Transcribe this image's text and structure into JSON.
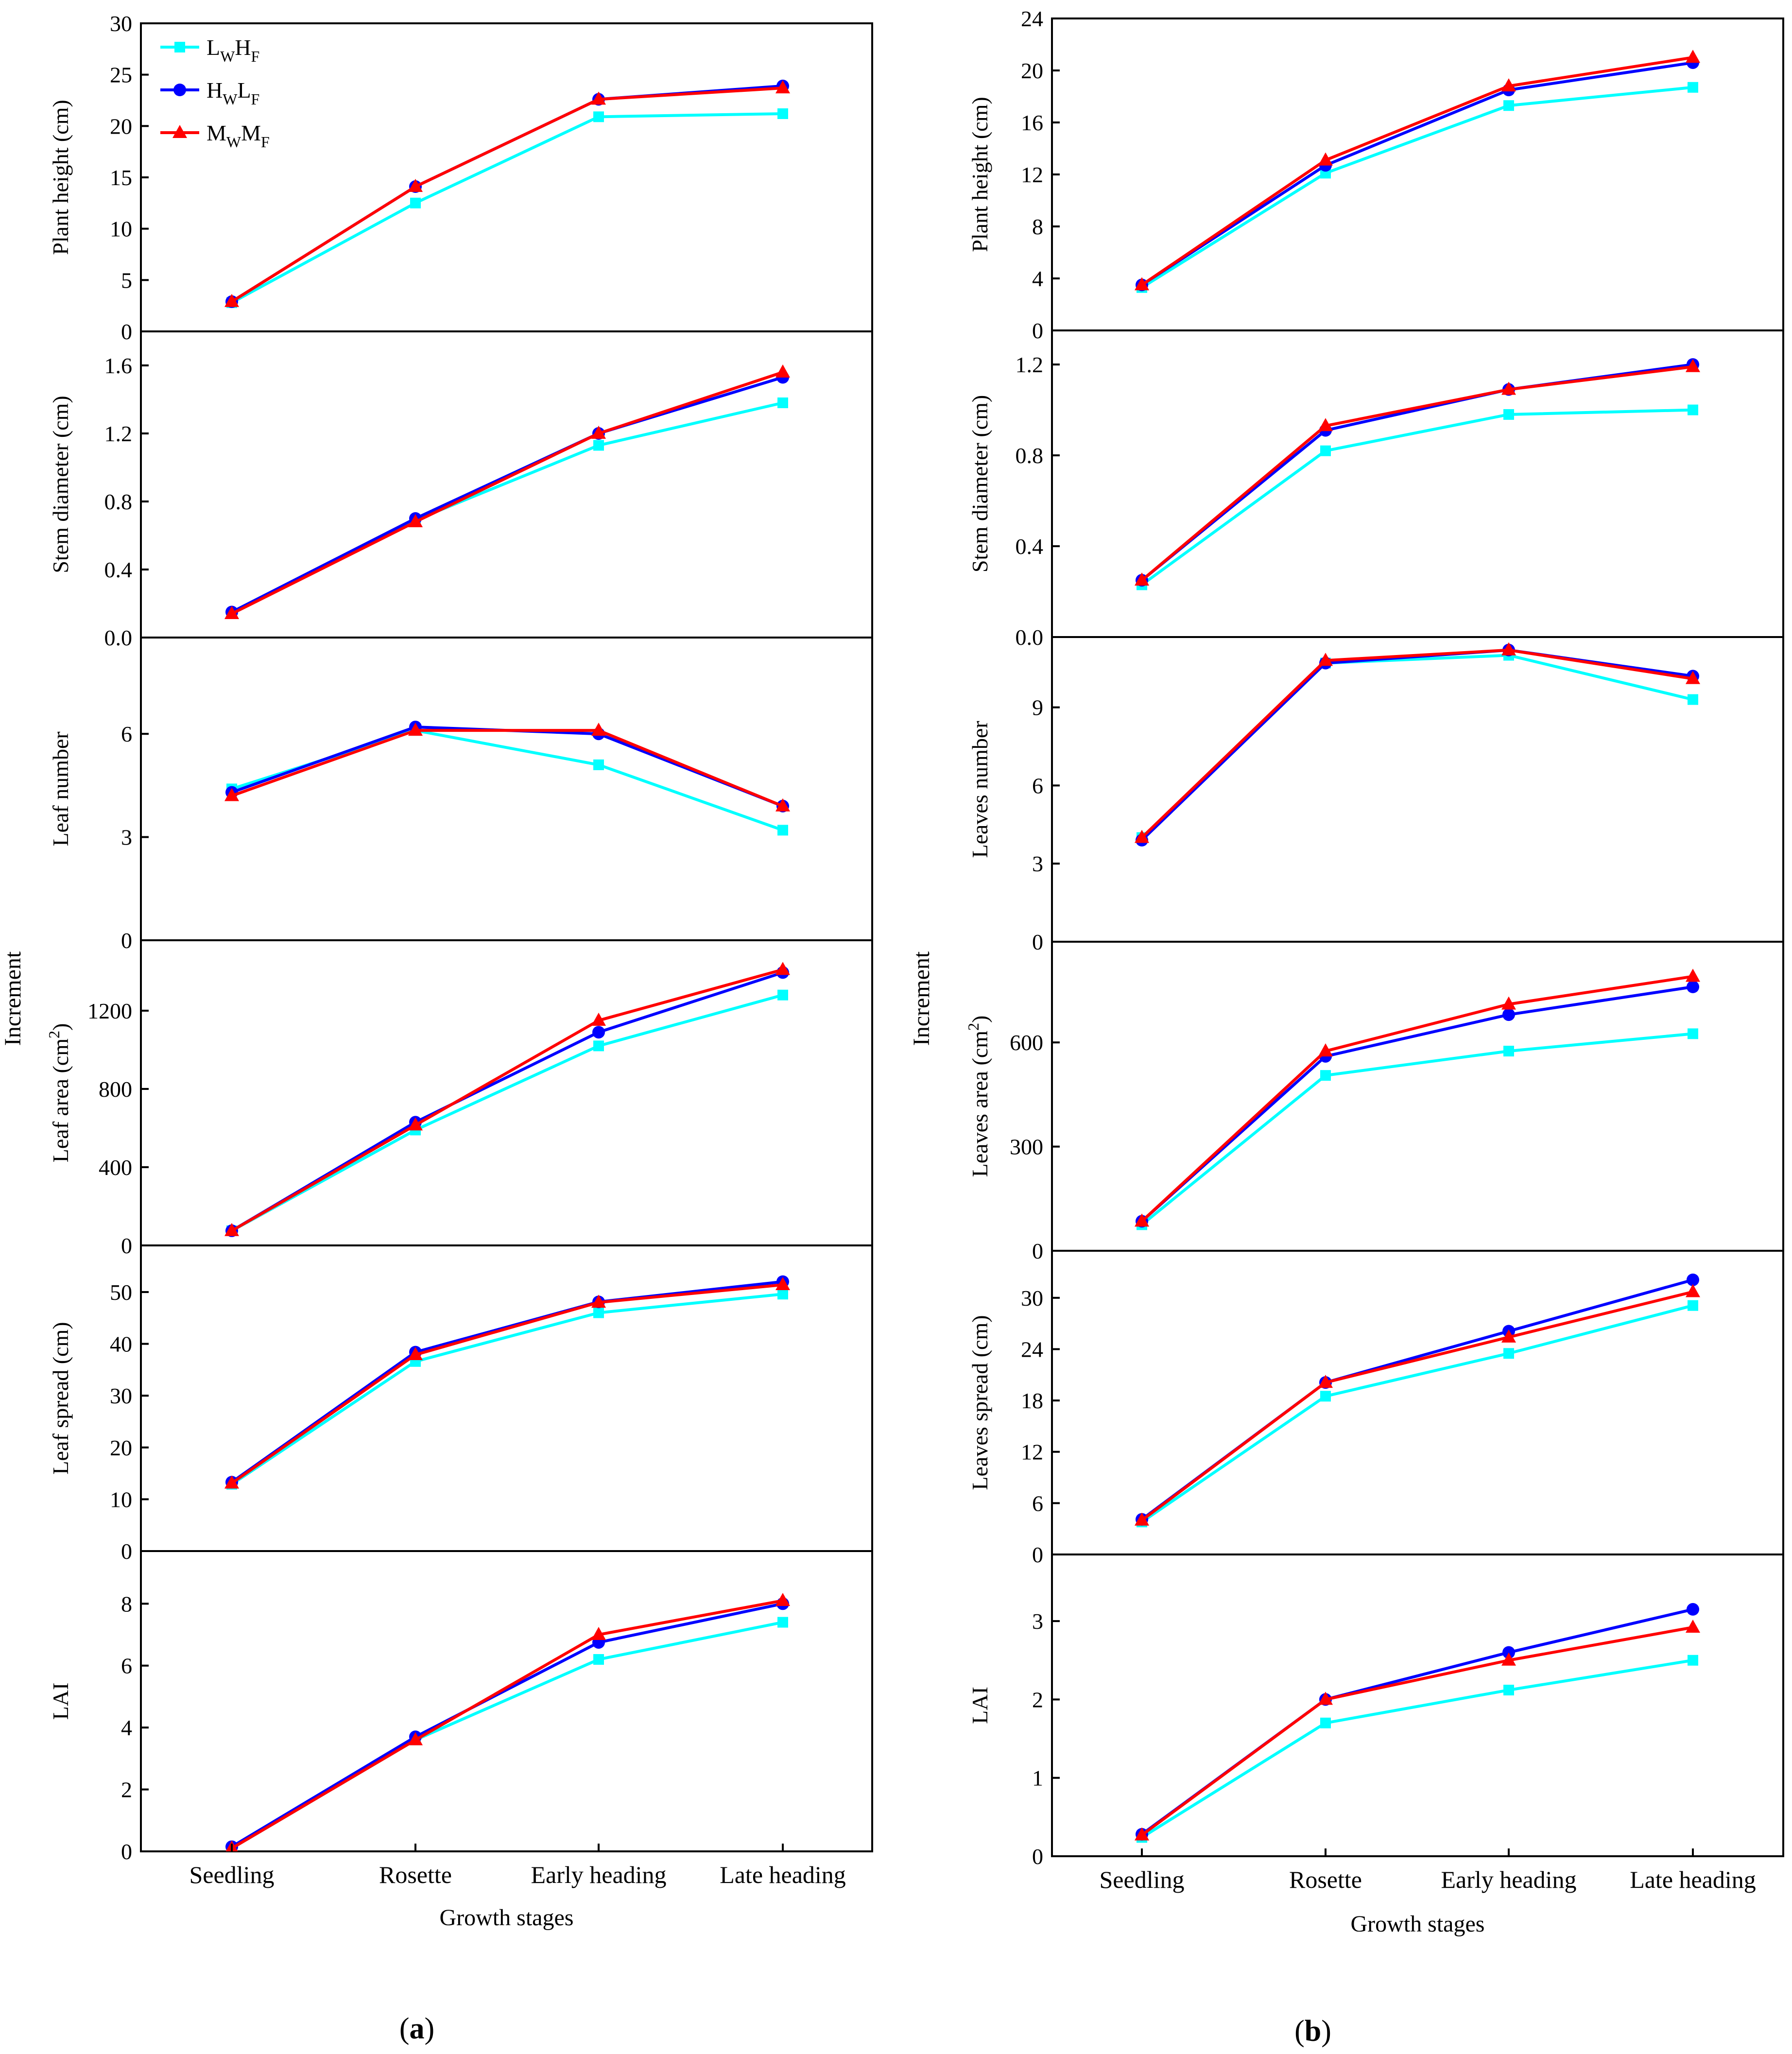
{
  "chart_data": [
    {
      "panel": "a",
      "panel_label": "(a)",
      "type": "line",
      "y_group_label": "Increment",
      "xlabel": "Growth stages",
      "categories": [
        "Seedling",
        "Rosette",
        "Early heading",
        "Late heading"
      ],
      "legend": {
        "placement": "top-left",
        "entries": [
          {
            "main1": "L",
            "sub1": "W",
            "main2": "H",
            "sub2": "F"
          },
          {
            "main1": "H",
            "sub1": "W",
            "main2": "L",
            "sub2": "F"
          },
          {
            "main1": "M",
            "sub1": "W",
            "main2": "M",
            "sub2": "F"
          }
        ]
      },
      "subplots": [
        {
          "ylabel": "Plant height (cm)",
          "ylabel_sup": "",
          "ylabel_end": "",
          "ylim": [
            0,
            30
          ],
          "yticks": [
            0,
            5,
            10,
            15,
            20,
            25,
            30
          ],
          "tick_labels": [
            "0",
            "5",
            "10",
            "15",
            "20",
            "25",
            "30"
          ],
          "series": [
            {
              "name": "LWHF",
              "values": [
                2.8,
                12.5,
                20.9,
                21.2
              ]
            },
            {
              "name": "HWLF",
              "values": [
                2.9,
                14.1,
                22.6,
                23.9
              ]
            },
            {
              "name": "MWMF",
              "values": [
                2.9,
                14.1,
                22.6,
                23.7
              ]
            }
          ]
        },
        {
          "ylabel": "Stem diameter (cm)",
          "ylabel_sup": "",
          "ylabel_end": "",
          "ylim": [
            0,
            1.8
          ],
          "yticks": [
            0,
            0.4,
            0.8,
            1.2,
            1.6
          ],
          "tick_labels": [
            "0.0",
            "0.4",
            "0.8",
            "1.2",
            "1.6"
          ],
          "series": [
            {
              "name": "LWHF",
              "values": [
                0.14,
                0.69,
                1.13,
                1.38
              ]
            },
            {
              "name": "HWLF",
              "values": [
                0.15,
                0.7,
                1.2,
                1.53
              ]
            },
            {
              "name": "MWMF",
              "values": [
                0.14,
                0.68,
                1.2,
                1.56
              ]
            }
          ]
        },
        {
          "ylabel": "Leaf number",
          "ylabel_sup": "",
          "ylabel_end": "",
          "ylim": [
            0,
            8.8
          ],
          "yticks": [
            0,
            3,
            6
          ],
          "tick_labels": [
            "0",
            "3",
            "6"
          ],
          "series": [
            {
              "name": "LWHF",
              "values": [
                4.4,
                6.1,
                5.1,
                3.2
              ]
            },
            {
              "name": "HWLF",
              "values": [
                4.3,
                6.2,
                6.0,
                3.9
              ]
            },
            {
              "name": "MWMF",
              "values": [
                4.2,
                6.1,
                6.1,
                3.9
              ]
            }
          ]
        },
        {
          "ylabel": "Leaf area (cm",
          "ylabel_sup": "2",
          "ylabel_end": ")",
          "ylim": [
            0,
            1560
          ],
          "yticks": [
            0,
            400,
            800,
            1200
          ],
          "tick_labels": [
            "0",
            "400",
            "800",
            "1200"
          ],
          "series": [
            {
              "name": "LWHF",
              "values": [
                75,
                590,
                1020,
                1280
              ]
            },
            {
              "name": "HWLF",
              "values": [
                75,
                630,
                1090,
                1395
              ]
            },
            {
              "name": "MWMF",
              "values": [
                75,
                615,
                1150,
                1410
              ]
            }
          ]
        },
        {
          "ylabel": "Leaf spread (cm)",
          "ylabel_sup": "",
          "ylabel_end": "",
          "ylim": [
            0,
            59
          ],
          "yticks": [
            0,
            10,
            20,
            30,
            40,
            50
          ],
          "tick_labels": [
            "0",
            "10",
            "20",
            "30",
            "40",
            "50"
          ],
          "series": [
            {
              "name": "LWHF",
              "values": [
                12.9,
                36.6,
                46.0,
                49.6
              ]
            },
            {
              "name": "HWLF",
              "values": [
                13.3,
                38.4,
                48.1,
                52.0
              ]
            },
            {
              "name": "MWMF",
              "values": [
                13.1,
                37.9,
                48.0,
                51.4
              ]
            }
          ]
        },
        {
          "ylabel": "LAI",
          "ylabel_sup": "",
          "ylabel_end": "",
          "ylim": [
            0,
            9.7
          ],
          "yticks": [
            0,
            2,
            4,
            6,
            8
          ],
          "tick_labels": [
            "0",
            "2",
            "4",
            "6",
            "8"
          ],
          "series": [
            {
              "name": "LWHF",
              "values": [
                0.1,
                3.6,
                6.2,
                7.4
              ]
            },
            {
              "name": "HWLF",
              "values": [
                0.15,
                3.7,
                6.75,
                8.0
              ]
            },
            {
              "name": "MWMF",
              "values": [
                0.1,
                3.6,
                7.0,
                8.1
              ]
            }
          ]
        }
      ]
    },
    {
      "panel": "b",
      "panel_label": "(b)",
      "type": "line",
      "y_group_label": "Increment",
      "xlabel": "Growth stages",
      "categories": [
        "Seedling",
        "Rosette",
        "Early heading",
        "Late heading"
      ],
      "subplots": [
        {
          "ylabel": "Plant height (cm)",
          "ylabel_sup": "",
          "ylabel_end": "",
          "ylim": [
            0,
            24
          ],
          "yticks": [
            0,
            4,
            8,
            12,
            16,
            20,
            24
          ],
          "tick_labels": [
            "0",
            "4",
            "8",
            "12",
            "16",
            "20",
            "24"
          ],
          "series": [
            {
              "name": "LWHF",
              "values": [
                3.3,
                12.1,
                17.3,
                18.7
              ]
            },
            {
              "name": "HWLF",
              "values": [
                3.5,
                12.7,
                18.5,
                20.6
              ]
            },
            {
              "name": "MWMF",
              "values": [
                3.5,
                13.1,
                18.8,
                21.0
              ]
            }
          ]
        },
        {
          "ylabel": "Stem diameter (cm)",
          "ylabel_sup": "",
          "ylabel_end": "",
          "ylim": [
            0,
            1.35
          ],
          "yticks": [
            0,
            0.4,
            0.8,
            1.2
          ],
          "tick_labels": [
            "0.0",
            "0.4",
            "0.8",
            "1.2"
          ],
          "series": [
            {
              "name": "LWHF",
              "values": [
                0.23,
                0.82,
                0.98,
                1.0
              ]
            },
            {
              "name": "HWLF",
              "values": [
                0.25,
                0.91,
                1.09,
                1.2
              ]
            },
            {
              "name": "MWMF",
              "values": [
                0.25,
                0.93,
                1.09,
                1.19
              ]
            }
          ]
        },
        {
          "ylabel": "Leaves number",
          "ylabel_sup": "",
          "ylabel_end": "",
          "ylim": [
            0,
            11.7
          ],
          "yticks": [
            0,
            3,
            6,
            9
          ],
          "tick_labels": [
            "0",
            "3",
            "6",
            "9"
          ],
          "series": [
            {
              "name": "LWHF",
              "values": [
                4.0,
                10.7,
                11.0,
                9.3
              ]
            },
            {
              "name": "HWLF",
              "values": [
                3.9,
                10.7,
                11.2,
                10.2
              ]
            },
            {
              "name": "MWMF",
              "values": [
                4.0,
                10.8,
                11.2,
                10.1
              ]
            }
          ]
        },
        {
          "ylabel": "Leaves area (cm",
          "ylabel_sup": "2",
          "ylabel_end": ")",
          "ylim": [
            0,
            890
          ],
          "yticks": [
            0,
            300,
            600
          ],
          "tick_labels": [
            "0",
            "300",
            "600"
          ],
          "series": [
            {
              "name": "LWHF",
              "values": [
                75,
                505,
                575,
                625
              ]
            },
            {
              "name": "HWLF",
              "values": [
                85,
                560,
                680,
                760
              ]
            },
            {
              "name": "MWMF",
              "values": [
                85,
                575,
                710,
                790
              ]
            }
          ]
        },
        {
          "ylabel": "Leaves spread (cm)",
          "ylabel_sup": "",
          "ylabel_end": "",
          "ylim": [
            0,
            35.5
          ],
          "yticks": [
            0,
            6,
            12,
            18,
            24,
            30
          ],
          "tick_labels": [
            "0",
            "6",
            "12",
            "18",
            "24",
            "30"
          ],
          "series": [
            {
              "name": "LWHF",
              "values": [
                3.8,
                18.5,
                23.5,
                29.1
              ]
            },
            {
              "name": "HWLF",
              "values": [
                4.1,
                20.1,
                26.1,
                32.1
              ]
            },
            {
              "name": "MWMF",
              "values": [
                4.0,
                20.1,
                25.4,
                30.7
              ]
            }
          ]
        },
        {
          "ylabel": "LAI",
          "ylabel_sup": "",
          "ylabel_end": "",
          "ylim": [
            0,
            3.85
          ],
          "yticks": [
            0,
            1,
            2,
            3
          ],
          "tick_labels": [
            "0",
            "1",
            "2",
            "3"
          ],
          "series": [
            {
              "name": "LWHF",
              "values": [
                0.24,
                1.7,
                2.12,
                2.5
              ]
            },
            {
              "name": "HWLF",
              "values": [
                0.28,
                2.0,
                2.6,
                3.15
              ]
            },
            {
              "name": "MWMF",
              "values": [
                0.27,
                2.0,
                2.5,
                2.92
              ]
            }
          ]
        }
      ]
    }
  ],
  "series_style": {
    "LWHF": {
      "color": "#00ffff",
      "marker": "square"
    },
    "HWLF": {
      "color": "#0000ff",
      "marker": "circle"
    },
    "MWMF": {
      "color": "#ff0000",
      "marker": "triangle"
    }
  }
}
